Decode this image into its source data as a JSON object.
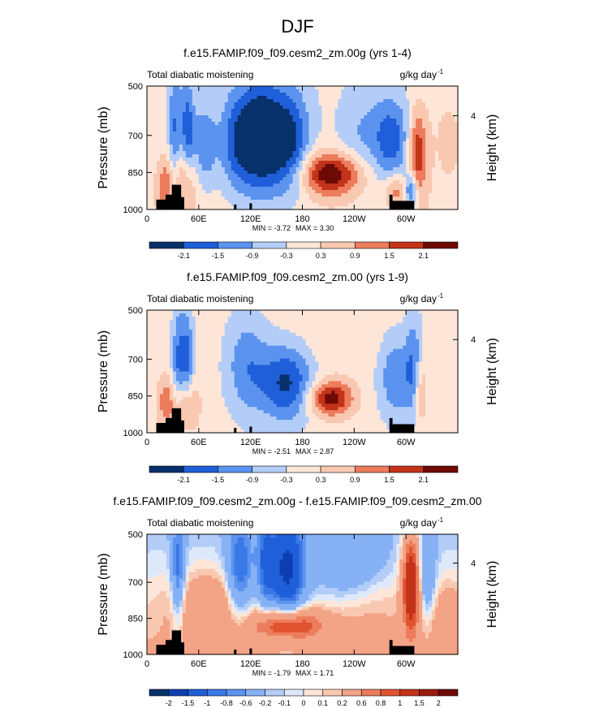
{
  "page": {
    "title": "DJF"
  },
  "chart_data": [
    {
      "type": "heatmap",
      "title": "f.e15.FAMIP.f09_f09.cesm2_zm.00g (yrs 1-4)",
      "variable": "Total diabatic moistening",
      "units": "g/kg day",
      "units_exp": "-1",
      "ylabel": "Pressure (mb)",
      "y2label": "Height (km)",
      "y_ticks": [
        "500",
        "700",
        "850",
        "1000"
      ],
      "y2_ticks": [
        "4"
      ],
      "x_ticks": [
        "0",
        "60E",
        "120E",
        "180",
        "120W",
        "60W"
      ],
      "min_text": "MIN = -3.72",
      "max_text": "MAX = 3.30",
      "colorbar_levels": [
        "-2.1",
        "-1.5",
        "-0.9",
        "-0.3",
        "0.3",
        "0.9",
        "1.5",
        "2.1"
      ]
    },
    {
      "type": "heatmap",
      "title": "f.e15.FAMIP.f09_f09.cesm2_zm.00 (yrs 1-9)",
      "variable": "Total diabatic moistening",
      "units": "g/kg day",
      "units_exp": "-1",
      "ylabel": "Pressure (mb)",
      "y2label": "Height (km)",
      "y_ticks": [
        "500",
        "700",
        "850",
        "1000"
      ],
      "y2_ticks": [
        "4"
      ],
      "x_ticks": [
        "0",
        "60E",
        "120E",
        "180",
        "120W",
        "60W"
      ],
      "min_text": "MIN = -2.51",
      "max_text": "MAX = 2.87",
      "colorbar_levels": [
        "-2.1",
        "-1.5",
        "-0.9",
        "-0.3",
        "0.3",
        "0.9",
        "1.5",
        "2.1"
      ]
    },
    {
      "type": "heatmap",
      "title": "f.e15.FAMIP.f09_f09.cesm2_zm.00g - f.e15.FAMIP.f09_f09.cesm2_zm.00",
      "variable": "Total diabatic moistening",
      "units": "g/kg day",
      "units_exp": "-1",
      "ylabel": "Pressure (mb)",
      "y2label": "Height (km)",
      "y_ticks": [
        "500",
        "700",
        "850",
        "1000"
      ],
      "y2_ticks": [
        "4"
      ],
      "x_ticks": [
        "0",
        "60E",
        "120E",
        "180",
        "120W",
        "60W"
      ],
      "min_text": "MIN = -1.79",
      "max_text": "MAX = 1.71",
      "colorbar_levels": [
        "-2",
        "-1.5",
        "-1",
        "-0.8",
        "-0.6",
        "-0.2",
        "-0.1",
        "0",
        "0.1",
        "0.2",
        "0.6",
        "0.8",
        "1",
        "1.5",
        "2"
      ]
    }
  ],
  "colors": {
    "palette": [
      "#08306b",
      "#0d3fb0",
      "#1f5fd9",
      "#3b78e7",
      "#5b93ef",
      "#86b1f5",
      "#b3cdf8",
      "#dde9fb",
      "#fde6d8",
      "#f9c8b0",
      "#f3a386",
      "#ec7c5c",
      "#e0532f",
      "#c23319",
      "#9a1b0d",
      "#6e0a06"
    ],
    "topo": "#000000"
  }
}
